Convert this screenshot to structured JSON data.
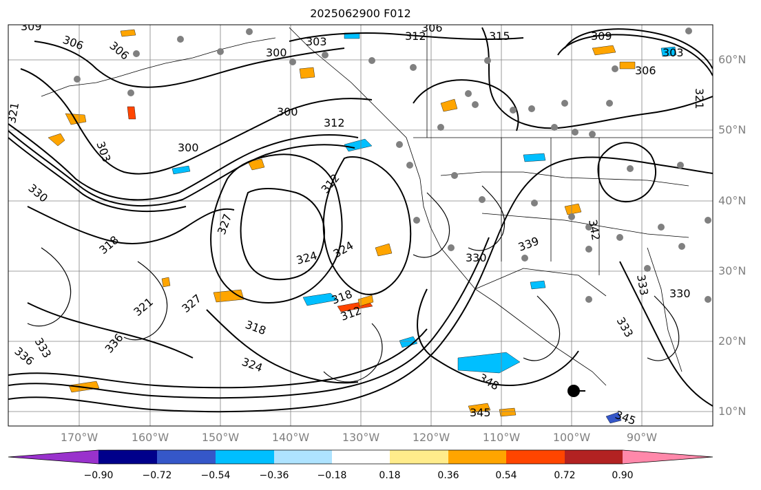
{
  "title": "2025062900 F012",
  "lat_labels": [
    "60°N",
    "50°N",
    "40°N",
    "30°N",
    "20°N",
    "10°N"
  ],
  "lon_labels": [
    "170°W",
    "160°W",
    "150°W",
    "140°W",
    "130°W",
    "120°W",
    "110°W",
    "100°W",
    "90°W"
  ],
  "contour_labels": [
    "309",
    "306",
    "300",
    "315",
    "312",
    "303",
    "306",
    "309",
    "303",
    "306",
    "321",
    "300",
    "312",
    "300",
    "303",
    "306",
    "330",
    "321",
    "318",
    "312",
    "324",
    "324",
    "318",
    "312",
    "327",
    "318",
    "321",
    "324",
    "333",
    "336",
    "330",
    "339",
    "342",
    "333",
    "330",
    "333",
    "336",
    "348",
    "345",
    "345",
    "327"
  ],
  "colorbar": {
    "tick_labels": [
      "−0.90",
      "−0.72",
      "−0.54",
      "−0.36",
      "−0.18",
      "0.18",
      "0.36",
      "0.54",
      "0.72",
      "0.90"
    ],
    "colors": [
      "#9932cc",
      "#00008b",
      "#3557c9",
      "#00bfff",
      "#aee3ff",
      "#ffffff",
      "#ffec8b",
      "#ffa500",
      "#ff4500",
      "#b22222",
      "#ff88aa"
    ],
    "extend": "both"
  },
  "colors": {
    "contour": "#000000",
    "grid": "#808080",
    "marker": "#808080",
    "axis_label": "#808080"
  },
  "icons": {
    "storm_marker": "black-dot-icon"
  }
}
